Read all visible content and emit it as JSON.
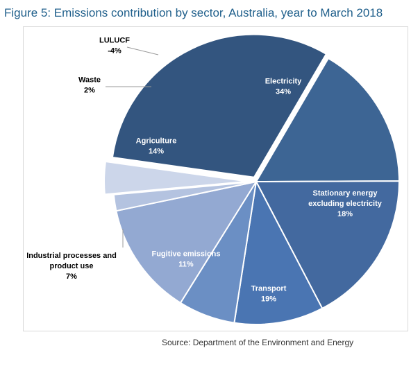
{
  "title": "Figure 5: Emissions contribution by sector, Australia, year to March 2018",
  "source": "Source: Department of the Environment and Energy",
  "chart_data": {
    "type": "pie",
    "title": "Figure 5: Emissions contribution by sector, Australia, year to March 2018",
    "slices": [
      {
        "label": "Electricity",
        "lines": [
          "Electricity"
        ],
        "value": 34,
        "value_label": "34%",
        "color": "#33557f",
        "text_color": "#ffffff"
      },
      {
        "label": "Stationary energy excluding electricity",
        "lines": [
          "Stationary energy",
          "excluding electricity"
        ],
        "value": 18,
        "value_label": "18%",
        "color": "#3d6594",
        "text_color": "#ffffff"
      },
      {
        "label": "Transport",
        "lines": [
          "Transport"
        ],
        "value": 19,
        "value_label": "19%",
        "color": "#43699f",
        "text_color": "#ffffff"
      },
      {
        "label": "Fugitive emissions",
        "lines": [
          "Fugitive emissions"
        ],
        "value": 11,
        "value_label": "11%",
        "color": "#4a75b2",
        "text_color": "#ffffff"
      },
      {
        "label": "Industrial processes and product use",
        "lines": [
          "Industrial processes and",
          "product use"
        ],
        "value": 7,
        "value_label": "7%",
        "color": "#6b8fc4",
        "text_color": "#000000"
      },
      {
        "label": "Agriculture",
        "lines": [
          "Agriculture"
        ],
        "value": 14,
        "value_label": "14%",
        "color": "#93a9d2",
        "text_color": "#ffffff"
      },
      {
        "label": "Waste",
        "lines": [
          "Waste"
        ],
        "value": 2,
        "value_label": "2%",
        "color": "#b4c3e0",
        "text_color": "#000000"
      },
      {
        "label": "LULUCF",
        "lines": [
          "LULUCF"
        ],
        "value": -4,
        "value_label": "-4%",
        "color": "#ccd6ea",
        "text_color": "#000000"
      }
    ],
    "legend": "none"
  }
}
